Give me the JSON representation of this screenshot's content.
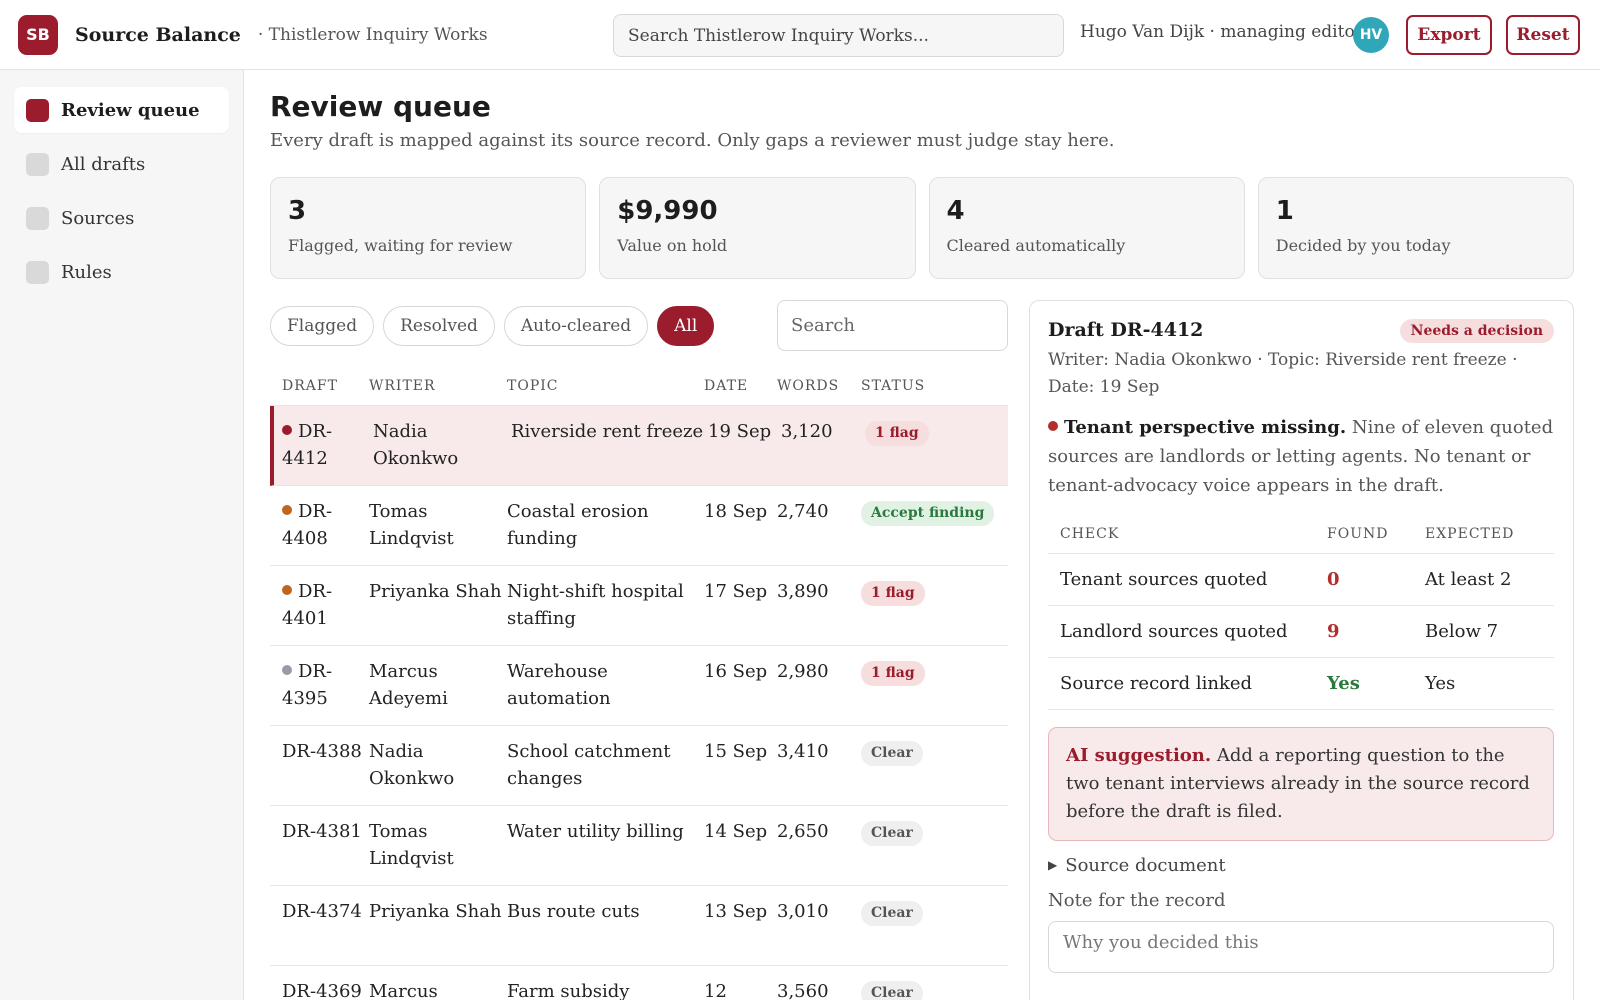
{
  "header": {
    "logo": "SB",
    "app_name": "Source Balance",
    "workspace": "· Thistlerow Inquiry Works",
    "search_placeholder": "Search Thistlerow Inquiry Works...",
    "user": "Hugo Van Dijk · managing editor",
    "avatar": "HV",
    "export_label": "Export",
    "reset_label": "Reset"
  },
  "sidebar": {
    "items": [
      {
        "label": "Review queue",
        "icon": "square-icon",
        "active": true
      },
      {
        "label": "All drafts",
        "icon": "square-icon"
      },
      {
        "label": "Sources",
        "icon": "square-icon"
      },
      {
        "label": "Rules",
        "icon": "square-icon"
      }
    ]
  },
  "main": {
    "title": "Review queue",
    "subtitle": "Every draft is mapped against its source record. Only gaps a reviewer must judge stay here."
  },
  "stats": [
    {
      "value": "3",
      "label": "Flagged, waiting for review"
    },
    {
      "value": "$9,990",
      "label": "Value on hold"
    },
    {
      "value": "4",
      "label": "Cleared automatically"
    },
    {
      "value": "1",
      "label": "Decided by you today"
    }
  ],
  "filters": {
    "chips": [
      "Flagged",
      "Resolved",
      "Auto-cleared",
      "All"
    ],
    "active": "All",
    "search_placeholder": "Search"
  },
  "table": {
    "headers": [
      "DRAFT",
      "WRITER",
      "TOPIC",
      "DATE",
      "WORDS",
      "STATUS"
    ],
    "rows": [
      {
        "draft": "DR-4412",
        "writer": "Nadia Okonkwo",
        "topic": "Riverside rent freeze",
        "date": "19 Sep",
        "words": "3,120",
        "status": "1 flag",
        "status_kind": "flag",
        "dot": "#9b1c2c",
        "selected": true
      },
      {
        "draft": "DR-4408",
        "writer": "Tomas Lindqvist",
        "topic": "Coastal erosion funding",
        "date": "18 Sep",
        "words": "2,740",
        "status": "Accept finding",
        "status_kind": "accept",
        "dot": "#c0651f"
      },
      {
        "draft": "DR-4401",
        "writer": "Priyanka Shah",
        "topic": "Night-shift hospital staffing",
        "date": "17 Sep",
        "words": "3,890",
        "status": "1 flag",
        "status_kind": "flag",
        "dot": "#c0651f"
      },
      {
        "draft": "DR-4395",
        "writer": "Marcus Adeyemi",
        "topic": "Warehouse automation",
        "date": "16 Sep",
        "words": "2,980",
        "status": "1 flag",
        "status_kind": "flag",
        "dot": "#9a9aa8"
      },
      {
        "draft": "DR-4388",
        "writer": "Nadia Okonkwo",
        "topic": "School catchment changes",
        "date": "15 Sep",
        "words": "3,410",
        "status": "Clear",
        "status_kind": "clear",
        "dot": ""
      },
      {
        "draft": "DR-4381",
        "writer": "Tomas Lindqvist",
        "topic": "Water utility billing",
        "date": "14 Sep",
        "words": "2,650",
        "status": "Clear",
        "status_kind": "clear",
        "dot": ""
      },
      {
        "draft": "DR-4374",
        "writer": "Priyanka Shah",
        "topic": "Bus route cuts",
        "date": "13 Sep",
        "words": "3,010",
        "status": "Clear",
        "status_kind": "clear",
        "dot": ""
      },
      {
        "draft": "DR-4369",
        "writer": "Marcus",
        "topic": "Farm subsidy",
        "date": "12",
        "words": "3,560",
        "status": "Clear",
        "status_kind": "clear",
        "dot": ""
      }
    ]
  },
  "detail": {
    "title": "Draft DR-4412",
    "badge": "Needs a decision",
    "meta": "Writer: Nadia Okonkwo · Topic: Riverside rent freeze · Date: 19 Sep",
    "finding_title": "Tenant perspective missing.",
    "finding_text": "Nine of eleven quoted sources are landlords or letting agents. No tenant or tenant-advocacy voice appears in the draft.",
    "checks_headers": [
      "CHECK",
      "FOUND",
      "EXPECTED"
    ],
    "checks": [
      {
        "check": "Tenant sources quoted",
        "found": "0",
        "expected": "At least 2",
        "ok": false
      },
      {
        "check": "Landlord sources quoted",
        "found": "9",
        "expected": "Below 7",
        "ok": false
      },
      {
        "check": "Source record linked",
        "found": "Yes",
        "expected": "Yes",
        "ok": true
      }
    ],
    "ai_label": "AI suggestion.",
    "ai_text": "Add a reporting question to the two tenant interviews already in the source record before the draft is filed.",
    "source_doc": "Source document",
    "note_label": "Note for the record",
    "note_placeholder": "Why you decided this"
  },
  "colors": {
    "accent": "#9b1c2c",
    "avatar": "#2fa7b8",
    "good": "#2a7a3d"
  }
}
